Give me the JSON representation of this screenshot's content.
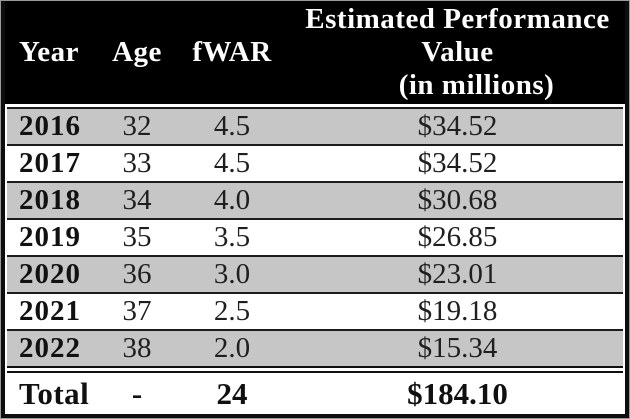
{
  "table": {
    "header": {
      "year": "Year",
      "age": "Age",
      "fwar": "fWAR",
      "value_line1": "Estimated Performance",
      "value_line2": "Value",
      "value_line3": "(in millions)"
    },
    "rows": [
      {
        "year": "2016",
        "age": "32",
        "fwar": "4.5",
        "value": "$34.52"
      },
      {
        "year": "2017",
        "age": "33",
        "fwar": "4.5",
        "value": "$34.52"
      },
      {
        "year": "2018",
        "age": "34",
        "fwar": "4.0",
        "value": "$30.68"
      },
      {
        "year": "2019",
        "age": "35",
        "fwar": "3.5",
        "value": "$26.85"
      },
      {
        "year": "2020",
        "age": "36",
        "fwar": "3.0",
        "value": "$23.01"
      },
      {
        "year": "2021",
        "age": "37",
        "fwar": "2.5",
        "value": "$19.18"
      },
      {
        "year": "2022",
        "age": "38",
        "fwar": "2.0",
        "value": "$15.34"
      }
    ],
    "total": {
      "label": "Total",
      "age": "-",
      "fwar": "24",
      "value": "$184.10"
    }
  },
  "colors": {
    "header_bg": "#000000",
    "header_text": "#ffffff",
    "row_alt_bg": "#c6c6c6",
    "row_bg": "#ffffff",
    "border": "#1c1c1c",
    "text": "#1f1f1f"
  }
}
